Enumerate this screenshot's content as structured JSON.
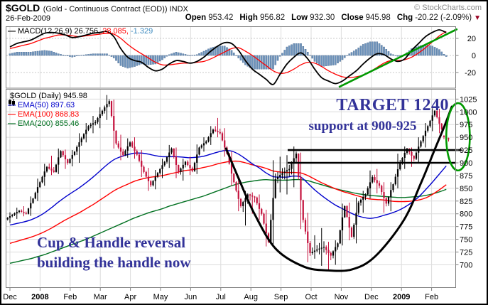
{
  "header": {
    "symbol": "$GOLD",
    "name": "(Gold - Continuous Contract (EOD)) INDX",
    "credit": "© StockCharts.com",
    "date": "26-Feb-2009",
    "quote": [
      {
        "label": "Open",
        "value": "953.42"
      },
      {
        "label": "High",
        "value": "956.82"
      },
      {
        "label": "Low",
        "value": "932.30"
      },
      {
        "label": "Close",
        "value": "945.98"
      },
      {
        "label": "Chg",
        "value": "-20.22 (-2.09%)"
      }
    ],
    "change_arrow": "▼"
  },
  "macd_panel": {
    "legend": {
      "swatch": "—",
      "name": "MACD(12,26,9)",
      "macd_value": "26.756,",
      "signal_value": "28.085,",
      "hist_value": "-1.329"
    }
  },
  "main_panel": {
    "legend": {
      "title": "$GOLD (Daily) 945.98",
      "ema50": "EMA(50) 897.63",
      "ema100": "EMA(100) 868.83",
      "ema200": "EMA(200) 855.46",
      "dash": "—"
    },
    "annotations": {
      "target": "TARGET 1240",
      "support": "support at 900-925",
      "cup_line1": "Cup & Handle reversal",
      "cup_line2": "building the handle now"
    }
  },
  "colors": {
    "candle_up": "#000000",
    "candle_down": "#c4103c",
    "ema50": "#0000cc",
    "ema100": "#ff0000",
    "ema200": "#007020",
    "macd_line": "#000000",
    "macd_signal": "#ff0000",
    "macd_hist_fill": "#6f94bd",
    "macd_hist_stroke": "#46688f",
    "hist_legend_text": "#3d8abf",
    "annotation_navy": "#333399",
    "shape_green": "#009900",
    "shape_black": "#000000",
    "down_arrow": "#990022",
    "grid": "#dcdcdc",
    "panel_border": "#808080"
  },
  "chart_data": {
    "type": "candlestick",
    "title": "$GOLD (Daily) 945.98",
    "x_axis": {
      "labels": [
        {
          "text": "Dec",
          "bold": false
        },
        {
          "text": "2008",
          "bold": true
        },
        {
          "text": "Feb",
          "bold": false
        },
        {
          "text": "Mar",
          "bold": false
        },
        {
          "text": "Apr",
          "bold": false
        },
        {
          "text": "May",
          "bold": false
        },
        {
          "text": "Jun",
          "bold": false
        },
        {
          "text": "Jul",
          "bold": false
        },
        {
          "text": "Aug",
          "bold": false
        },
        {
          "text": "Sep",
          "bold": false
        },
        {
          "text": "Oct",
          "bold": false
        },
        {
          "text": "Nov",
          "bold": false
        },
        {
          "text": "Dec",
          "bold": false
        },
        {
          "text": "2009",
          "bold": true
        },
        {
          "text": "Feb",
          "bold": false
        }
      ]
    },
    "y_axis": {
      "min": 657,
      "max": 1045,
      "ticks": [
        1025,
        1000,
        975,
        950,
        925,
        900,
        875,
        850,
        825,
        800,
        775,
        750,
        725,
        700
      ]
    },
    "last_close": 945.98,
    "weekly_ohlc": [
      [
        789,
        803,
        782,
        798
      ],
      [
        798,
        812,
        790,
        806
      ],
      [
        806,
        815,
        795,
        800
      ],
      [
        800,
        834,
        796,
        830
      ],
      [
        830,
        869,
        825,
        862
      ],
      [
        862,
        898,
        855,
        892
      ],
      [
        892,
        914,
        876,
        882
      ],
      [
        882,
        928,
        878,
        923
      ],
      [
        923,
        926,
        888,
        900
      ],
      [
        900,
        925,
        893,
        922
      ],
      [
        922,
        958,
        900,
        948
      ],
      [
        948,
        978,
        940,
        972
      ],
      [
        972,
        992,
        958,
        980
      ],
      [
        980,
        1009,
        968,
        1002
      ],
      [
        1002,
        1033,
        984,
        1021
      ],
      [
        1021,
        1024,
        928,
        938
      ],
      [
        938,
        955,
        905,
        915
      ],
      [
        915,
        948,
        910,
        940
      ],
      [
        940,
        950,
        908,
        916
      ],
      [
        916,
        925,
        872,
        882
      ],
      [
        882,
        890,
        845,
        856
      ],
      [
        856,
        886,
        848,
        880
      ],
      [
        880,
        908,
        870,
        902
      ],
      [
        902,
        935,
        890,
        928
      ],
      [
        928,
        930,
        870,
        882
      ],
      [
        882,
        908,
        865,
        902
      ],
      [
        902,
        912,
        876,
        884
      ],
      [
        884,
        936,
        878,
        930
      ],
      [
        930,
        950,
        922,
        942
      ],
      [
        942,
        972,
        935,
        965
      ],
      [
        965,
        988,
        950,
        958
      ],
      [
        958,
        968,
        912,
        918
      ],
      [
        918,
        922,
        855,
        862
      ],
      [
        862,
        868,
        805,
        815
      ],
      [
        815,
        845,
        777,
        838
      ],
      [
        838,
        842,
        800,
        832
      ],
      [
        832,
        838,
        788,
        800
      ],
      [
        800,
        808,
        736,
        745
      ],
      [
        745,
        905,
        740,
        868
      ],
      [
        868,
        912,
        842,
        880
      ],
      [
        880,
        915,
        838,
        888
      ],
      [
        888,
        932,
        852,
        918
      ],
      [
        918,
        920,
        770,
        788
      ],
      [
        788,
        802,
        705,
        723
      ],
      [
        723,
        758,
        712,
        730
      ],
      [
        730,
        772,
        698,
        735
      ],
      [
        735,
        745,
        688,
        718
      ],
      [
        718,
        748,
        700,
        742
      ],
      [
        742,
        820,
        738,
        815
      ],
      [
        815,
        822,
        748,
        755
      ],
      [
        755,
        832,
        742,
        822
      ],
      [
        822,
        845,
        802,
        838
      ],
      [
        838,
        885,
        830,
        872
      ],
      [
        872,
        888,
        840,
        855
      ],
      [
        855,
        862,
        802,
        820
      ],
      [
        820,
        862,
        805,
        858
      ],
      [
        858,
        918,
        850,
        900
      ],
      [
        900,
        932,
        888,
        928
      ],
      [
        928,
        930,
        892,
        908
      ],
      [
        908,
        950,
        900,
        942
      ],
      [
        942,
        978,
        930,
        972
      ],
      [
        972,
        1007,
        962,
        1002
      ],
      [
        1002,
        1006,
        958,
        966
      ],
      [
        953,
        957,
        932,
        946
      ]
    ],
    "series": [
      {
        "name": "EMA(50)",
        "current": 897.63,
        "values": [
          778,
          781,
          784,
          788,
          794,
          802,
          812,
          823,
          833,
          842,
          851,
          861,
          872,
          884,
          896,
          906,
          912,
          916,
          919,
          919,
          917,
          914,
          912,
          912,
          912,
          911,
          910,
          911,
          913,
          917,
          921,
          924,
          923,
          917,
          908,
          898,
          890,
          880,
          873,
          872,
          872,
          874,
          872,
          860,
          847,
          836,
          826,
          817,
          810,
          803,
          797,
          793,
          791,
          793,
          797,
          801,
          806,
          813,
          822,
          833,
          847,
          862,
          878,
          894
        ]
      },
      {
        "name": "EMA(100)",
        "current": 868.83,
        "values": [
          742,
          746,
          750,
          754,
          759,
          765,
          772,
          780,
          788,
          795,
          802,
          810,
          818,
          827,
          836,
          845,
          852,
          858,
          864,
          868,
          871,
          873,
          875,
          878,
          881,
          884,
          886,
          888,
          891,
          894,
          898,
          901,
          903,
          903,
          900,
          896,
          893,
          889,
          884,
          882,
          881,
          881,
          880,
          875,
          868,
          861,
          855,
          849,
          844,
          840,
          836,
          832,
          829,
          828,
          827,
          825,
          824,
          824,
          825,
          827,
          831,
          838,
          847,
          857
        ]
      },
      {
        "name": "EMA(200)",
        "current": 855.46,
        "values": [
          703,
          706,
          709,
          712,
          716,
          720,
          725,
          730,
          735,
          740,
          745,
          750,
          756,
          762,
          768,
          774,
          780,
          786,
          792,
          797,
          802,
          806,
          810,
          815,
          819,
          823,
          827,
          831,
          835,
          840,
          845,
          850,
          855,
          859,
          862,
          864,
          866,
          867,
          866,
          866,
          866,
          867,
          867,
          865,
          861,
          857,
          853,
          849,
          846,
          843,
          840,
          838,
          836,
          835,
          834,
          833,
          832,
          832,
          833,
          834,
          836,
          839,
          843,
          848
        ]
      }
    ],
    "macd": {
      "name": "MACD(12,26,9)",
      "current": 26.756,
      "signal_current": 28.085,
      "hist_current": -1.329,
      "axis_ticks": [
        20,
        0,
        -20
      ],
      "values": [
        10,
        14,
        16,
        18,
        22,
        26,
        27,
        26,
        24,
        21,
        22,
        24,
        26,
        27,
        28,
        22,
        8,
        -2,
        -6,
        -8,
        -14,
        -18,
        -16,
        -10,
        -6,
        -7,
        -9,
        -7,
        -2,
        5,
        11,
        15,
        14,
        6,
        -6,
        -16,
        -22,
        -28,
        -34,
        -22,
        -10,
        -2,
        3,
        -4,
        -16,
        -26,
        -30,
        -33,
        -30,
        -24,
        -18,
        -10,
        -3,
        2,
        1,
        -4,
        -7,
        -4,
        6,
        14,
        22,
        27,
        30,
        26.8
      ],
      "signal": [
        8,
        10,
        12,
        14,
        17,
        20,
        22,
        24,
        24,
        23,
        22,
        23,
        24,
        25,
        26,
        25,
        20,
        13,
        7,
        2,
        -3,
        -8,
        -11,
        -11,
        -10,
        -9,
        -9,
        -8,
        -7,
        -4,
        0,
        4,
        8,
        9,
        5,
        0,
        -6,
        -12,
        -18,
        -21,
        -20,
        -16,
        -11,
        -8,
        -9,
        -13,
        -18,
        -22,
        -25,
        -26,
        -25,
        -23,
        -19,
        -14,
        -9,
        -6,
        -6,
        -5,
        -2,
        3,
        9,
        16,
        23,
        28.1
      ],
      "trendline": {
        "from_week": 47.5,
        "from_value": -37,
        "to_week": 64.6,
        "to_value": 31
      }
    },
    "drawn_shapes": {
      "cup_points": [
        [
          31.2,
          928
        ],
        [
          33,
          870
        ],
        [
          35.3,
          800
        ],
        [
          38.4,
          731
        ],
        [
          42.5,
          696
        ],
        [
          46,
          689
        ],
        [
          49.4,
          691
        ],
        [
          52.7,
          716
        ],
        [
          56.8,
          786
        ],
        [
          59.4,
          862
        ],
        [
          61.3,
          925
        ],
        [
          62.8,
          974
        ],
        [
          63.8,
          1010
        ]
      ],
      "resistance_lines": [
        {
          "price": 925,
          "from_week": 40.1,
          "to_week": 65.2
        },
        {
          "price": 900,
          "from_week": 40.1,
          "to_week": 64.3
        }
      ],
      "ellipse": {
        "center_week": 64.7,
        "center_price": 951,
        "rx_weeks": 1.7,
        "ry_price": 66
      }
    }
  }
}
